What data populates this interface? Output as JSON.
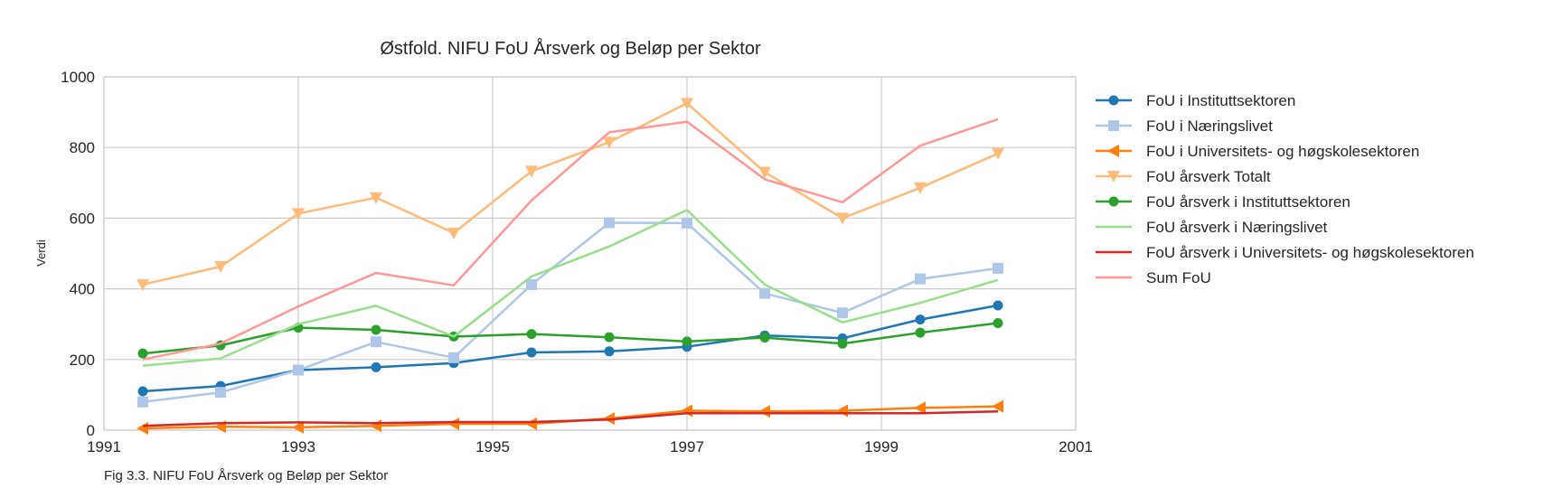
{
  "chart_data": {
    "type": "line",
    "title": "Østfold. NIFU FoU Årsverk og Beløp per Sektor",
    "xlabel": "",
    "ylabel": "Verdi",
    "caption": "Fig 3.3. NIFU FoU Årsverk og Beløp per Sektor",
    "xlim": [
      1991,
      2001
    ],
    "ylim": [
      0,
      1000
    ],
    "xticks": [
      "1991",
      "1993",
      "1995",
      "1997",
      "1999",
      "2001"
    ],
    "yticks": [
      "0",
      "200",
      "400",
      "600",
      "800",
      "1000"
    ],
    "grid": true,
    "legend_position": "right",
    "x": [
      1991.4,
      1992.2,
      1993.0,
      1993.8,
      1994.6,
      1995.4,
      1996.2,
      1997.0,
      1997.8,
      1998.6,
      1999.4,
      2000.2
    ],
    "series": [
      {
        "name": "FoU i Instituttsektoren",
        "color": "#1f77b4",
        "marker": "circle",
        "values": [
          110,
          125,
          170,
          178,
          190,
          220,
          223,
          236,
          268,
          260,
          313,
          353
        ]
      },
      {
        "name": "FoU i Næringslivet",
        "color": "#aec7e8",
        "marker": "square",
        "values": [
          80,
          107,
          170,
          250,
          205,
          412,
          587,
          586,
          387,
          332,
          428,
          458
        ]
      },
      {
        "name": "FoU i Universitets- og høgskolesektoren",
        "color": "#ff7f0e",
        "marker": "triangle-left",
        "values": [
          5,
          10,
          8,
          12,
          18,
          18,
          33,
          55,
          53,
          55,
          63,
          67
        ]
      },
      {
        "name": "FoU årsverk Totalt",
        "color": "#ffbb78",
        "marker": "triangle-down",
        "values": [
          412,
          463,
          613,
          658,
          558,
          733,
          815,
          925,
          730,
          600,
          686,
          783
        ]
      },
      {
        "name": "FoU årsverk i Instituttsektoren",
        "color": "#2ca02c",
        "marker": "circle",
        "values": [
          217,
          240,
          290,
          284,
          265,
          272,
          263,
          251,
          262,
          245,
          276,
          303
        ]
      },
      {
        "name": "FoU årsverk i Næringslivet",
        "color": "#98df8a",
        "marker": "none",
        "values": [
          182,
          203,
          300,
          352,
          265,
          435,
          520,
          623,
          412,
          305,
          360,
          425
        ]
      },
      {
        "name": "FoU årsverk i Universitets- og høgskolesektoren",
        "color": "#d62728",
        "marker": "none",
        "values": [
          12,
          20,
          22,
          20,
          23,
          23,
          30,
          48,
          48,
          48,
          48,
          53
        ]
      },
      {
        "name": "Sum FoU",
        "color": "#ff9896",
        "marker": "none",
        "values": [
          200,
          245,
          350,
          445,
          410,
          650,
          843,
          873,
          710,
          645,
          805,
          880
        ]
      }
    ]
  }
}
